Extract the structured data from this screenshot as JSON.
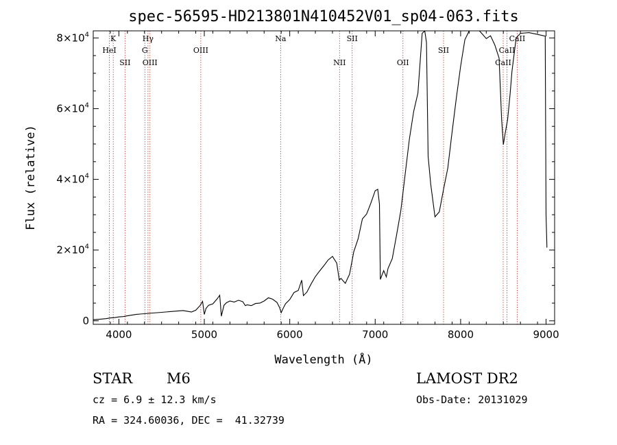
{
  "chart_data": {
    "type": "line",
    "title": "spec-56595-HD213801N410452V01_sp04-063.fits",
    "xlabel": "Wavelength (Å)",
    "ylabel": "Flux (relative)",
    "xlim": [
      3700,
      9100
    ],
    "ylim": [
      -1000,
      82000
    ],
    "x_ticks": [
      {
        "value": 4000,
        "label": "4000"
      },
      {
        "value": 5000,
        "label": "5000"
      },
      {
        "value": 6000,
        "label": "6000"
      },
      {
        "value": 7000,
        "label": "7000"
      },
      {
        "value": 8000,
        "label": "8000"
      },
      {
        "value": 9000,
        "label": "9000"
      }
    ],
    "y_ticks": [
      {
        "value": 0,
        "label": "0",
        "mant": "",
        "exp": ""
      },
      {
        "value": 20000,
        "label": "2×10^4",
        "mant": "2×10",
        "exp": "4"
      },
      {
        "value": 40000,
        "label": "4×10^4",
        "mant": "4×10",
        "exp": "4"
      },
      {
        "value": 60000,
        "label": "6×10^4",
        "mant": "6×10",
        "exp": "4"
      },
      {
        "value": 80000,
        "label": "8×10^4",
        "mant": "8×10",
        "exp": "4"
      }
    ],
    "series": [
      {
        "color": "#000000",
        "x": [
          3700,
          3750,
          3800,
          3850,
          3900,
          3950,
          4000,
          4050,
          4100,
          4150,
          4200,
          4250,
          4300,
          4350,
          4400,
          4450,
          4500,
          4550,
          4600,
          4650,
          4700,
          4750,
          4800,
          4850,
          4900,
          4950,
          4980,
          5000,
          5020,
          5050,
          5100,
          5150,
          5180,
          5200,
          5230,
          5260,
          5300,
          5350,
          5400,
          5450,
          5480,
          5500,
          5550,
          5600,
          5650,
          5700,
          5750,
          5800,
          5850,
          5880,
          5900,
          5920,
          5950,
          6000,
          6050,
          6100,
          6140,
          6160,
          6200,
          6250,
          6300,
          6350,
          6400,
          6450,
          6500,
          6550,
          6580,
          6600,
          6650,
          6700,
          6750,
          6800,
          6850,
          6900,
          6950,
          7000,
          7030,
          7050,
          7060,
          7100,
          7130,
          7150,
          7200,
          7250,
          7300,
          7350,
          7400,
          7450,
          7500,
          7550,
          7580,
          7600,
          7620,
          7650,
          7700,
          7750,
          7800,
          7850,
          7900,
          7950,
          8000,
          8050,
          8100,
          8150,
          8200,
          8250,
          8300,
          8350,
          8400,
          8450,
          8480,
          8500,
          8520,
          8550,
          8580,
          8600,
          8650,
          8700,
          8800,
          8900,
          8990,
          9000,
          9010
        ],
        "y": [
          300,
          400,
          500,
          600,
          800,
          900,
          1100,
          1200,
          1400,
          1600,
          1800,
          1900,
          2000,
          2100,
          2200,
          2300,
          2400,
          2500,
          2600,
          2700,
          2800,
          2900,
          2700,
          2500,
          3000,
          4300,
          5500,
          1800,
          3500,
          4400,
          4800,
          6200,
          7200,
          1300,
          4400,
          5100,
          5600,
          5300,
          5800,
          5400,
          4300,
          4500,
          4300,
          4900,
          5000,
          5600,
          6500,
          6100,
          5200,
          3800,
          2300,
          3400,
          4800,
          6000,
          8000,
          8600,
          11500,
          7100,
          8100,
          10400,
          12500,
          14100,
          15600,
          17200,
          18200,
          16300,
          11500,
          12000,
          10600,
          13200,
          19600,
          23200,
          28800,
          30200,
          33300,
          36800,
          37200,
          33000,
          11700,
          14200,
          12400,
          14800,
          17600,
          24200,
          31200,
          41300,
          51300,
          59200,
          64400,
          81300,
          82000,
          78700,
          46500,
          38600,
          29400,
          30800,
          37200,
          43200,
          53300,
          63100,
          72000,
          79500,
          82000,
          82500,
          82500,
          81200,
          79800,
          80600,
          78000,
          74300,
          57000,
          49800,
          52800,
          57000,
          64400,
          70400,
          80000,
          81300,
          81500,
          81000,
          80500,
          30000,
          20700
        ]
      }
    ],
    "line_markers": [
      {
        "x": 3934,
        "label": "K",
        "row": 1
      },
      {
        "x": 3889,
        "label": "HeI",
        "row": 2
      },
      {
        "x": 4072,
        "label": "SII",
        "row": 3
      },
      {
        "x": 4341,
        "label": "Hγ",
        "row": 1
      },
      {
        "x": 4304,
        "label": "G",
        "row": 2
      },
      {
        "x": 4364,
        "label": "OIII",
        "row": 3
      },
      {
        "x": 4959,
        "label": "OIII",
        "row": 2
      },
      {
        "x": 5893,
        "label": "Na",
        "row": 1
      },
      {
        "x": 6731,
        "label": "SII",
        "row": 1
      },
      {
        "x": 6583,
        "label": "NII",
        "row": 3
      },
      {
        "x": 7325,
        "label": "OII",
        "row": 3
      },
      {
        "x": 7800,
        "label": "SII",
        "row": 2
      },
      {
        "x": 8662,
        "label": "CaII",
        "row": 1
      },
      {
        "x": 8542,
        "label": "CaII",
        "row": 2
      },
      {
        "x": 8498,
        "label": "CaII",
        "row": 3
      }
    ],
    "grid": false,
    "legend": "none"
  },
  "info": {
    "object_class": "STAR",
    "subclass": "M6",
    "redshift": "cz = 6.9 ± 12.3 km/s",
    "coords": "RA = 324.60036, DEC =  41.32739",
    "survey": "LAMOST DR2",
    "obs_date": "Obs-Date: 20131029"
  }
}
